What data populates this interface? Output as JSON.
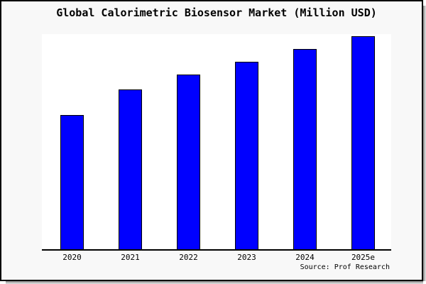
{
  "source": "Source: Prof Research",
  "colors": {
    "bar": "#0000ff",
    "bar_border": "#000000",
    "background": "#f8f8f8",
    "plot_background": "#ffffff",
    "axis": "#000000"
  },
  "chart_data": {
    "type": "bar",
    "title": "Global Calorimetric Biosensor Market (Million USD)",
    "categories": [
      "2020",
      "2021",
      "2022",
      "2023",
      "2024",
      "2025e"
    ],
    "values": [
      63,
      75,
      82,
      88,
      94,
      100
    ],
    "xlabel": "",
    "ylabel": "",
    "ylim": [
      0,
      101
    ],
    "grid": false,
    "legend": false
  }
}
